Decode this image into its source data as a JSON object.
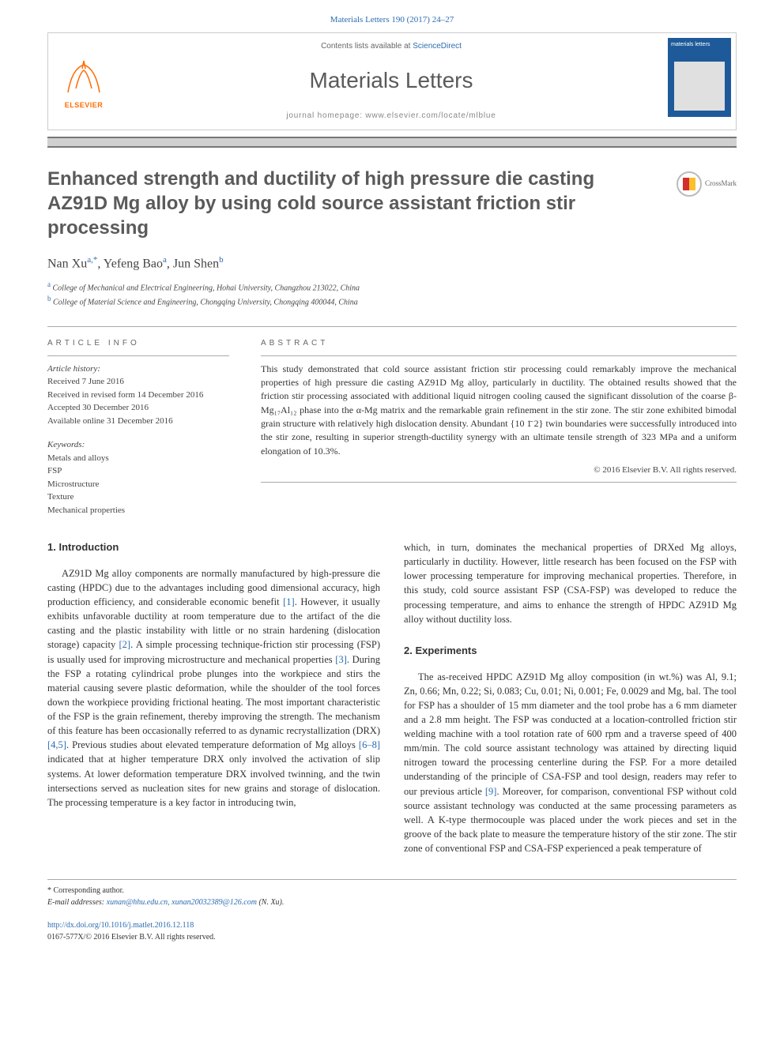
{
  "top_citation": "Materials Letters 190 (2017) 24–27",
  "header": {
    "contents_prefix": "Contents lists available at ",
    "contents_link": "ScienceDirect",
    "journal": "Materials Letters",
    "homepage_prefix": "journal homepage: ",
    "homepage_url": "www.elsevier.com/locate/mlblue",
    "publisher": "ELSEVIER"
  },
  "title": "Enhanced strength and ductility of high pressure die casting AZ91D Mg alloy by using cold source assistant friction stir processing",
  "crossmark": "CrossMark",
  "authors": [
    {
      "name": "Nan Xu",
      "sup": "a,*"
    },
    {
      "name": "Yefeng Bao",
      "sup": "a"
    },
    {
      "name": "Jun Shen",
      "sup": "b"
    }
  ],
  "affiliations": [
    {
      "sup": "a",
      "text": "College of Mechanical and Electrical Engineering, Hohai University, Changzhou 213022, China"
    },
    {
      "sup": "b",
      "text": "College of Material Science and Engineering, Chongqing University, Chongqing 400044, China"
    }
  ],
  "article_info": {
    "label": "ARTICLE INFO",
    "history_head": "Article history:",
    "received": "Received 7 June 2016",
    "revised": "Received in revised form 14 December 2016",
    "accepted": "Accepted 30 December 2016",
    "online": "Available online 31 December 2016",
    "keywords_head": "Keywords:",
    "keywords": [
      "Metals and alloys",
      "FSP",
      "Microstructure",
      "Texture",
      "Mechanical properties"
    ]
  },
  "abstract": {
    "label": "ABSTRACT",
    "text": "This study demonstrated that cold source assistant friction stir processing could remarkably improve the mechanical properties of high pressure die casting AZ91D Mg alloy, particularly in ductility. The obtained results showed that the friction stir processing associated with additional liquid nitrogen cooling caused the significant dissolution of the coarse β-Mg₁₇Al₁₂ phase into the α-Mg matrix and the remarkable grain refinement in the stir zone. The stir zone exhibited bimodal grain structure with relatively high dislocation density. Abundant {10 1̄ 2} twin boundaries were successfully introduced into the stir zone, resulting in superior strength-ductility synergy with an ultimate tensile strength of 323 MPa and a uniform elongation of 10.3%.",
    "copyright": "© 2016 Elsevier B.V. All rights reserved."
  },
  "body": {
    "intro_head": "1. Introduction",
    "intro_para": "AZ91D Mg alloy components are normally manufactured by high-pressure die casting (HPDC) due to the advantages including good dimensional accuracy, high production efficiency, and considerable economic benefit [1]. However, it usually exhibits unfavorable ductility at room temperature due to the artifact of the die casting and the plastic instability with little or no strain hardening (dislocation storage) capacity [2]. A simple processing technique-friction stir processing (FSP) is usually used for improving microstructure and mechanical properties [3]. During the FSP a rotating cylindrical probe plunges into the workpiece and stirs the material causing severe plastic deformation, while the shoulder of the tool forces down the workpiece providing frictional heating. The most important characteristic of the FSP is the grain refinement, thereby improving the strength. The mechanism of this feature has been occasionally referred to as dynamic recrystallization (DRX) [4,5]. Previous studies about elevated temperature deformation of Mg alloys [6–8] indicated that at higher temperature DRX only involved the activation of slip systems. At lower deformation temperature DRX involved twinning, and the twin intersections served as nucleation sites for new grains and storage of dislocation. The processing temperature is a key factor in introducing twin,",
    "col2_top": "which, in turn, dominates the mechanical properties of DRXed Mg alloys, particularly in ductility. However, little research has been focused on the FSP with lower processing temperature for improving mechanical properties. Therefore, in this study, cold source assistant FSP (CSA-FSP) was developed to reduce the processing temperature, and aims to enhance the strength of HPDC AZ91D Mg alloy without ductility loss.",
    "exp_head": "2. Experiments",
    "exp_para": "The as-received HPDC AZ91D Mg alloy composition (in wt.%) was Al, 9.1; Zn, 0.66; Mn, 0.22; Si, 0.083; Cu, 0.01; Ni, 0.001; Fe, 0.0029 and Mg, bal. The tool for FSP has a shoulder of 15 mm diameter and the tool probe has a 6 mm diameter and a 2.8 mm height. The FSP was conducted at a location-controlled friction stir welding machine with a tool rotation rate of 600 rpm and a traverse speed of 400 mm/min. The cold source assistant technology was attained by directing liquid nitrogen toward the processing centerline during the FSP. For a more detailed understanding of the principle of CSA-FSP and tool design, readers may refer to our previous article [9]. Moreover, for comparison, conventional FSP without cold source assistant technology was conducted at the same processing parameters as well. A K-type thermocouple was placed under the work pieces and set in the groove of the back plate to measure the temperature history of the stir zone. The stir zone of conventional FSP and CSA-FSP experienced a peak temperature of"
  },
  "footer": {
    "corr_mark": "* Corresponding author.",
    "email_label": "E-mail addresses:",
    "emails": "xunan@hhu.edu.cn, xunan20032389@126.com",
    "email_owner": "(N. Xu).",
    "doi_url": "http://dx.doi.org/10.1016/j.matlet.2016.12.118",
    "issn_line": "0167-577X/© 2016 Elsevier B.V. All rights reserved."
  },
  "colors": {
    "link": "#2b6cb0",
    "elsevier_orange": "#ff6b00",
    "heading_gray": "#5a5a5a"
  }
}
